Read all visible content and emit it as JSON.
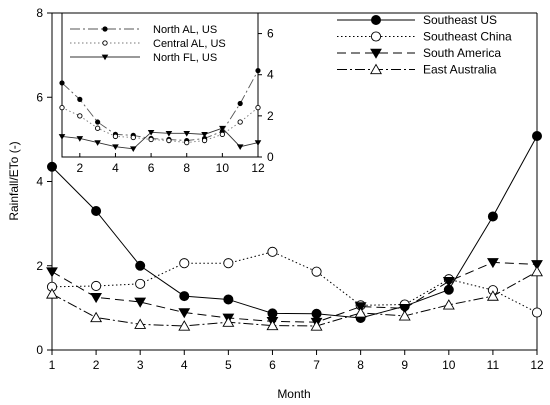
{
  "chart_data": [
    {
      "id": "main",
      "type": "line",
      "xlabel": "Month",
      "ylabel": "Rainfall/ETo (-)",
      "x": [
        1,
        2,
        3,
        4,
        5,
        6,
        7,
        8,
        9,
        10,
        11,
        12
      ],
      "xticks": [
        "1",
        "2",
        "3",
        "4",
        "5",
        "6",
        "7",
        "8",
        "9",
        "10",
        "11",
        "12"
      ],
      "xlim": [
        1,
        12
      ],
      "ylim": [
        0,
        8
      ],
      "yticks": [
        "0",
        "2",
        "4",
        "6",
        "8"
      ],
      "legend_position": "top-right",
      "grid": false,
      "series": [
        {
          "name": "Southeast US",
          "marker": "filled-circle",
          "line": "solid",
          "values": [
            4.35,
            3.3,
            2.0,
            1.28,
            1.2,
            0.87,
            0.86,
            0.76,
            1.04,
            1.43,
            3.17,
            5.08
          ]
        },
        {
          "name": "Southeast China",
          "marker": "open-circle",
          "line": "dotted",
          "values": [
            1.5,
            1.52,
            1.57,
            2.06,
            2.06,
            2.33,
            1.86,
            1.06,
            1.08,
            1.68,
            1.42,
            0.89
          ]
        },
        {
          "name": "South America",
          "marker": "filled-triangle-down",
          "line": "dashed",
          "values": [
            1.86,
            1.25,
            1.14,
            0.89,
            0.76,
            0.68,
            0.66,
            1.03,
            0.99,
            1.63,
            2.08,
            2.03
          ]
        },
        {
          "name": "East Australia",
          "marker": "open-triangle-up",
          "line": "dash-dot",
          "values": [
            1.33,
            0.77,
            0.61,
            0.57,
            0.66,
            0.58,
            0.57,
            0.88,
            0.81,
            1.07,
            1.28,
            1.86
          ]
        }
      ]
    },
    {
      "id": "inset",
      "type": "line",
      "xlabel": "",
      "ylabel": "",
      "x": [
        1,
        2,
        3,
        4,
        5,
        6,
        7,
        8,
        9,
        10,
        11,
        12
      ],
      "xticks": [
        "2",
        "4",
        "6",
        "8",
        "10",
        "12"
      ],
      "xlim": [
        1,
        12
      ],
      "ylim": [
        0,
        7
      ],
      "yticks": [
        "0",
        "2",
        "4",
        "6"
      ],
      "legend_position": "top-left",
      "grid": false,
      "series": [
        {
          "name": "North AL, US",
          "marker": "filled-circle-small",
          "line": "dash-dot",
          "values": [
            3.6,
            2.8,
            1.7,
            1.1,
            1.05,
            0.9,
            0.85,
            0.8,
            0.9,
            1.25,
            2.6,
            4.2
          ]
        },
        {
          "name": "Central AL, US",
          "marker": "open-circle-small",
          "line": "dotted",
          "values": [
            2.4,
            2.0,
            1.4,
            1.0,
            0.95,
            0.85,
            0.8,
            0.7,
            0.8,
            1.1,
            1.7,
            2.4
          ]
        },
        {
          "name": "North FL, US",
          "marker": "filled-triangle-small",
          "line": "solid",
          "values": [
            1.0,
            0.9,
            0.7,
            0.5,
            0.4,
            1.2,
            1.15,
            1.15,
            1.1,
            1.4,
            0.5,
            0.7
          ]
        }
      ]
    }
  ]
}
